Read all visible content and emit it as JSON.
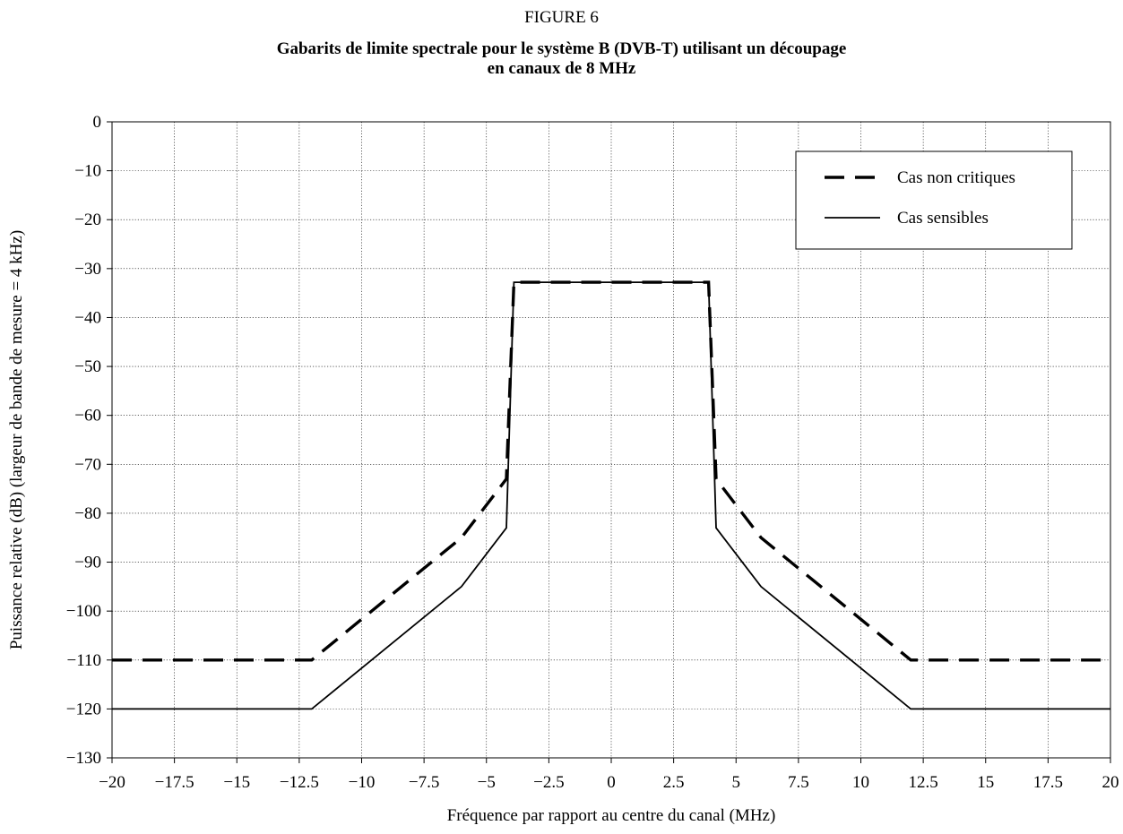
{
  "figure": {
    "number": "FIGURE 6",
    "title_line1": "Gabarits de limite spectrale pour le système B (DVB-T) utilisant un découpage",
    "title_line2": "en canaux de 8 MHz"
  },
  "chart_data": {
    "type": "line",
    "xlabel": "Fréquence par rapport au centre du canal (MHz)",
    "ylabel": "Puissance relative (dB) (largeur de bande de mesure = 4 kHz)",
    "xlim": [
      -20,
      20
    ],
    "ylim": [
      -130,
      0
    ],
    "xticks": [
      -20,
      -17.5,
      -15,
      -12.5,
      -10,
      -7.5,
      -5,
      -2.5,
      0,
      2.5,
      5,
      7.5,
      10,
      12.5,
      15,
      17.5,
      20
    ],
    "xtick_labels": [
      "−20",
      "−17.5",
      "−15",
      "−12.5",
      "−10",
      "−7.5",
      "−5",
      "−2.5",
      "0",
      "2.5",
      "5",
      "7.5",
      "10",
      "12.5",
      "15",
      "17.5",
      "20"
    ],
    "yticks": [
      0,
      -10,
      -20,
      -30,
      -40,
      -50,
      -60,
      -70,
      -80,
      -90,
      -100,
      -110,
      -120,
      -130
    ],
    "ytick_labels": [
      "0",
      "−10",
      "−20",
      "−30",
      "−40",
      "−50",
      "−60",
      "−70",
      "−80",
      "−90",
      "−100",
      "−110",
      "−120",
      "−130"
    ],
    "grid": true,
    "legend_position": "top-right",
    "series": [
      {
        "name": "Cas non critiques",
        "style": "dashed",
        "x": [
          -20,
          -12,
          -6,
          -4.2,
          -3.9,
          3.9,
          4.2,
          6,
          12,
          20
        ],
        "y": [
          -110,
          -110,
          -85,
          -73,
          -32.8,
          -32.8,
          -73,
          -85,
          -110,
          -110
        ]
      },
      {
        "name": "Cas sensibles",
        "style": "solid",
        "x": [
          -20,
          -12,
          -6,
          -4.2,
          -3.9,
          3.9,
          4.2,
          6,
          12,
          20
        ],
        "y": [
          -120,
          -120,
          -95,
          -83,
          -32.8,
          -32.8,
          -83,
          -95,
          -120,
          -120
        ]
      }
    ]
  }
}
